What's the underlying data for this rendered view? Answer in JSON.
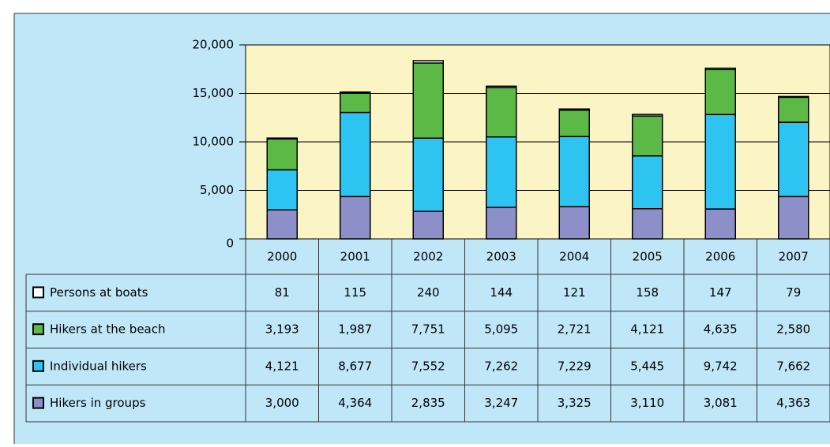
{
  "chart_data": {
    "type": "bar",
    "stacked": true,
    "categories": [
      "2000",
      "2001",
      "2002",
      "2003",
      "2004",
      "2005",
      "2006",
      "2007"
    ],
    "series": [
      {
        "name": "Persons at boats",
        "color": "#ffffff",
        "values": [
          81,
          115,
          240,
          144,
          121,
          158,
          147,
          79
        ]
      },
      {
        "name": "Hikers at the beach",
        "color": "#5cb946",
        "values": [
          3193,
          1987,
          7751,
          5095,
          2721,
          4121,
          4635,
          2580
        ],
        "value_labels": [
          "3,193",
          "1,987",
          "7,751",
          "5,095",
          "2,721",
          "4,121",
          "4,635",
          "2,580"
        ]
      },
      {
        "name": "Individual hikers",
        "color": "#2ec4f2",
        "values": [
          4121,
          8677,
          7552,
          7262,
          7229,
          5445,
          9742,
          7662
        ],
        "value_labels": [
          "4,121",
          "8,677",
          "7,552",
          "7,262",
          "7,229",
          "5,445",
          "9,742",
          "7,662"
        ]
      },
      {
        "name": "Hikers in groups",
        "color": "#8d8fc8",
        "values": [
          3000,
          4364,
          2835,
          3247,
          3325,
          3110,
          3081,
          4363
        ],
        "value_labels": [
          "3,000",
          "4,364",
          "2,835",
          "3,247",
          "3,325",
          "3,110",
          "3,081",
          "4,363"
        ]
      }
    ],
    "ylim": [
      0,
      20000
    ],
    "yticks": [
      0,
      {
        "value": 5000,
        "label": "5,000"
      },
      {
        "value": 10000,
        "label": "10,000"
      },
      {
        "value": 15000,
        "label": "15,000"
      },
      {
        "value": 20000,
        "label": "20,000"
      }
    ],
    "grid": true
  }
}
